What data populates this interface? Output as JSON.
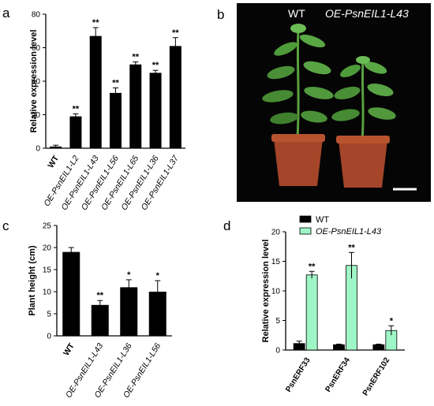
{
  "panels": {
    "a": {
      "letter": "a"
    },
    "b": {
      "letter": "b",
      "labels": [
        "WT",
        "OE-PsnEIL1-L43"
      ]
    },
    "c": {
      "letter": "c"
    },
    "d": {
      "letter": "d"
    }
  },
  "colors": {
    "bar_black": "#000000",
    "bar_green": "#9ef5c5",
    "photo_bg": "#050505",
    "pot": "#a5452a",
    "leaf": "#4e9b3a"
  },
  "chart_data": [
    {
      "id": "a",
      "type": "bar",
      "ylabel": "Relative expression level",
      "ylim": [
        0,
        80
      ],
      "yticks": [
        0,
        20,
        40,
        60,
        80
      ],
      "categories": [
        "WT",
        "OE-PsnEIL1-L2",
        "OE-PsnEIL1-L43",
        "OE-PsnEIL1-L56",
        "OE-PsnEIL1-L65",
        "OE-PsnEIL1-L36",
        "OE-PsnEIL1-L37"
      ],
      "values": [
        1,
        19,
        67,
        33,
        50,
        45,
        61
      ],
      "errors": [
        0.8,
        1.5,
        5,
        3,
        1.5,
        1.5,
        5
      ],
      "significance": [
        "",
        "**",
        "**",
        "**",
        "**",
        "**",
        "**"
      ]
    },
    {
      "id": "c",
      "type": "bar",
      "ylabel": "Plant height (cm)",
      "ylim": [
        0,
        25
      ],
      "yticks": [
        0,
        5,
        10,
        15,
        20,
        25
      ],
      "categories": [
        "WT",
        "OE-PsnEIL1-L43",
        "OE-PsnEIL1-L36",
        "OE-PsnEIL1-L56"
      ],
      "values": [
        19,
        7,
        11,
        10
      ],
      "errors": [
        1,
        1,
        1.7,
        2.5
      ],
      "significance": [
        "",
        "**",
        "*",
        "*"
      ]
    },
    {
      "id": "d",
      "type": "bar",
      "ylabel": "Relative expression level",
      "ylim": [
        0,
        20
      ],
      "yticks": [
        0,
        5,
        10,
        15,
        20
      ],
      "categories": [
        "PsnERF33",
        "PsnERF34",
        "PsnERF102"
      ],
      "series": [
        {
          "name": "WT",
          "values": [
            1.1,
            0.9,
            0.9
          ],
          "errors": [
            0.4,
            0.1,
            0.1
          ]
        },
        {
          "name": "OE-PsnEIL1-L43",
          "values": [
            12.7,
            14.3,
            3.3
          ],
          "errors": [
            0.6,
            2.2,
            0.8
          ]
        }
      ],
      "significance": [
        "**",
        "**",
        "*"
      ],
      "legend": "top"
    }
  ]
}
